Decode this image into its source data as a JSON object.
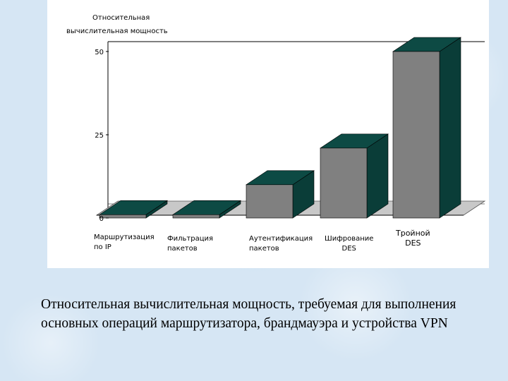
{
  "chart_data": {
    "type": "bar",
    "title": "Относительная\nвычислительная мощность",
    "categories": [
      "Маршрутизация\nпо IP",
      "Фильтрация\nпакетов",
      "Аутентификация\nпакетов",
      "Шифрование\nDES",
      "Тройной\nDES"
    ],
    "values": [
      1,
      1,
      10,
      21,
      50
    ],
    "yticks": [
      "0",
      "25",
      "50"
    ],
    "ylim": [
      0,
      55
    ],
    "grid": false,
    "style": "3d",
    "colors": {
      "front": "#808080",
      "top": "#0d4a44",
      "side": "#0a3d38",
      "floor": "#c8c8c8"
    }
  },
  "caption": "Относительная вычислительная мощность, требуемая для выполнения  основных операций маршрутизатора, брандмауэра и устройства VPN"
}
